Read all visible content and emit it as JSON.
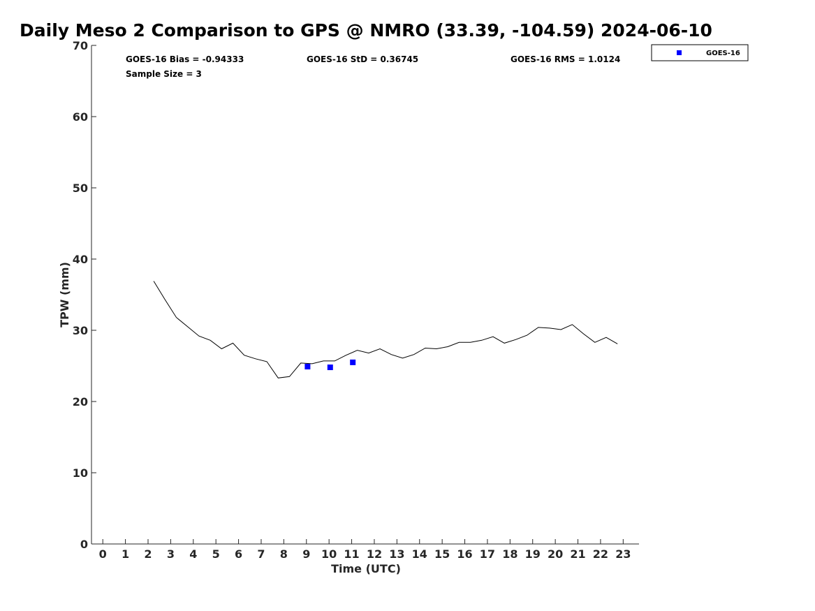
{
  "chart_data": {
    "type": "scatter",
    "title": "Daily Meso 2 Comparison to GPS @ NMRO (33.39, -104.59) 2024-06-10",
    "xlabel": "Time (UTC)",
    "ylabel": "TPW (mm)",
    "xlim": [
      -0.5,
      23.7
    ],
    "ylim": [
      0,
      70
    ],
    "xticks": [
      0,
      1,
      2,
      3,
      4,
      5,
      6,
      7,
      8,
      9,
      10,
      11,
      12,
      13,
      14,
      15,
      16,
      17,
      18,
      19,
      20,
      21,
      22,
      23
    ],
    "yticks": [
      0,
      10,
      20,
      30,
      40,
      50,
      60,
      70
    ],
    "grid": false,
    "legend": {
      "placement": "top-right-outside",
      "entries": [
        "GOES-16"
      ]
    },
    "stats": {
      "bias": "GOES-16 Bias = -0.94333",
      "std": "GOES-16 StD = 0.36745",
      "rms": "GOES-16 RMS = 1.0124",
      "sample": "Sample Size = 3"
    },
    "series": [
      {
        "kind": "line",
        "color": "#000000",
        "x": [
          2.25,
          2.75,
          3.25,
          3.75,
          4.25,
          4.75,
          5.25,
          5.75,
          6.25,
          6.75,
          7.25,
          7.75,
          8.25,
          8.75,
          9.25,
          9.75,
          10.25,
          10.75,
          11.25,
          11.75,
          12.25,
          12.75,
          13.25,
          13.75,
          14.25,
          14.75,
          15.25,
          15.75,
          16.25,
          16.75,
          17.25,
          17.75,
          18.25,
          18.75,
          19.25,
          19.75,
          20.25,
          20.75,
          21.25,
          21.75,
          22.25,
          22.75
        ],
        "y": [
          36.9,
          34.3,
          31.8,
          30.5,
          29.2,
          28.6,
          27.4,
          28.2,
          26.5,
          26.0,
          25.6,
          23.3,
          23.5,
          25.4,
          25.3,
          25.7,
          25.7,
          26.5,
          27.2,
          26.8,
          27.4,
          26.6,
          26.1,
          26.6,
          27.5,
          27.4,
          27.7,
          28.3,
          28.3,
          28.6,
          29.1,
          28.2,
          28.7,
          29.3,
          30.4,
          30.3,
          30.1,
          30.8,
          29.5,
          28.3,
          29.0,
          28.1
        ]
      },
      {
        "name": "GOES-16",
        "kind": "scatter",
        "color": "#0000ff",
        "x": [
          9.05,
          10.05,
          11.05
        ],
        "y": [
          24.9,
          24.8,
          25.5
        ]
      }
    ]
  }
}
